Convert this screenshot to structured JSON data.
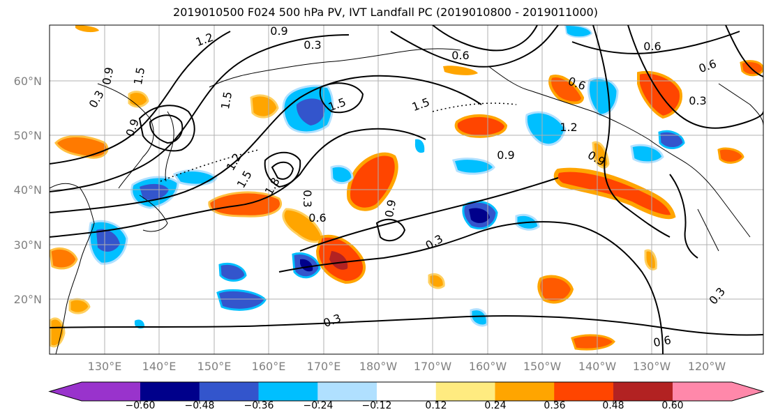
{
  "title": "2019010500 F024 500 hPa PV, IVT Landfall PC (2019010800 - 2019011000)",
  "map": {
    "lat_ticks": [
      "60°N",
      "50°N",
      "40°N",
      "30°N",
      "20°N"
    ],
    "lon_ticks": [
      "130°E",
      "140°E",
      "150°E",
      "160°E",
      "170°E",
      "180°W",
      "170°W",
      "160°W",
      "150°W",
      "140°W",
      "130°W",
      "120°W"
    ],
    "contour_labels": [
      "1.2",
      "0.9",
      "0.3",
      "1.5",
      "0.9",
      "0.3",
      "1.5",
      "1.5",
      "1.5",
      "1.2",
      "1.8",
      "1.5",
      "0.3",
      "0.6",
      "0.9",
      "0.3",
      "0.9",
      "1.2",
      "0.9",
      "0.6",
      "0.6",
      "0.3",
      "0.3",
      "0.3",
      "0.6",
      "0.6",
      "0.6",
      "0.9"
    ],
    "shading_colors": {
      "strong_negative": "#9933cc",
      "negative_1": "#00008b",
      "negative_2": "#3355cc",
      "negative_3": "#00bfff",
      "negative_4": "#b0e0ff",
      "neutral": "#ffffff",
      "positive_1": "#ffeb80",
      "positive_2": "#ffa500",
      "positive_3": "#ff4500",
      "positive_4": "#b22222",
      "strong_positive": "#ff88aa"
    }
  },
  "colorbar": {
    "labels": [
      "−0.60",
      "−0.48",
      "−0.36",
      "−0.24",
      "−0.12",
      "0.12",
      "0.24",
      "0.36",
      "0.48",
      "0.60"
    ],
    "colors": [
      "#9933cc",
      "#00008b",
      "#3355cc",
      "#00bfff",
      "#b0e0ff",
      "#ffffff",
      "#ffeb80",
      "#ffa500",
      "#ff4500",
      "#b22222",
      "#ff88aa"
    ]
  }
}
